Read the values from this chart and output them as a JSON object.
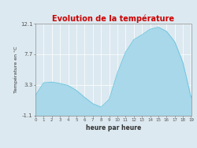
{
  "title": "Evolution de la température",
  "xlabel": "heure par heure",
  "ylabel": "Température en °C",
  "background_color": "#dce9f0",
  "plot_bg_color": "#dce9f0",
  "fill_color": "#a8d8ea",
  "line_color": "#6ec6e0",
  "title_color": "#cc0000",
  "grid_color": "#ffffff",
  "tick_color": "#555555",
  "ylim": [
    -1.1,
    12.1
  ],
  "xlim": [
    0,
    19
  ],
  "yticks": [
    -1.1,
    3.3,
    7.7,
    12.1
  ],
  "xticks": [
    0,
    1,
    2,
    3,
    4,
    5,
    6,
    7,
    8,
    9,
    10,
    11,
    12,
    13,
    14,
    15,
    16,
    17,
    18,
    19
  ],
  "hours": [
    0,
    1,
    2,
    3,
    4,
    5,
    6,
    7,
    8,
    9,
    10,
    11,
    12,
    13,
    14,
    15,
    16,
    17,
    18,
    19
  ],
  "temps": [
    1.8,
    3.6,
    3.7,
    3.5,
    3.2,
    2.5,
    1.5,
    0.6,
    0.1,
    1.2,
    5.0,
    8.0,
    9.8,
    10.5,
    11.3,
    11.6,
    11.0,
    9.5,
    6.5,
    1.5
  ]
}
